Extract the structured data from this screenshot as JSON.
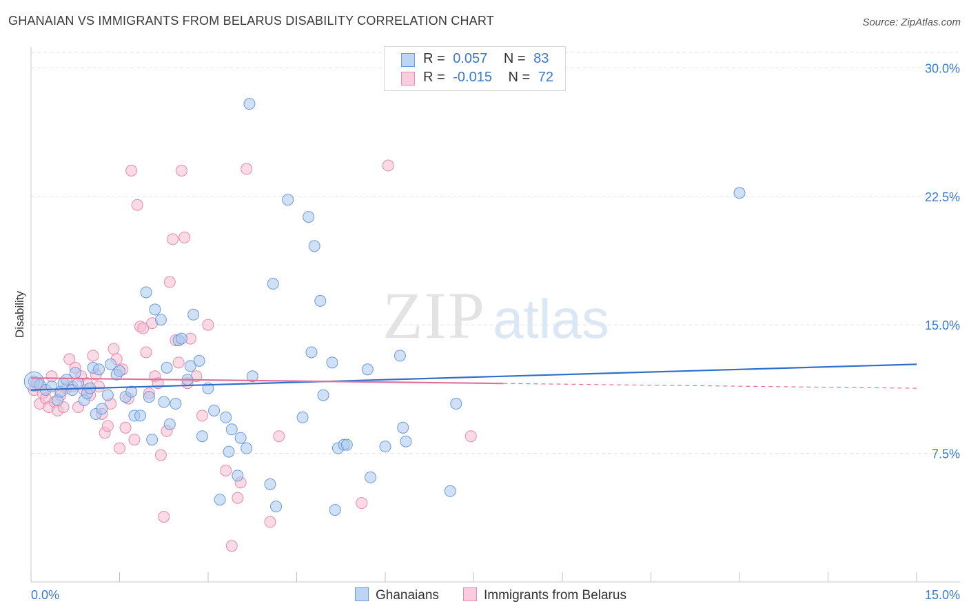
{
  "title": "GHANAIAN VS IMMIGRANTS FROM BELARUS DISABILITY CORRELATION CHART",
  "source": "Source: ZipAtlas.com",
  "watermark": {
    "zip": "ZIP",
    "atlas": "atlas"
  },
  "legend": {
    "rows": [
      {
        "r_label": "R =",
        "r_value": "0.057",
        "n_label": "N =",
        "n_value": "83"
      },
      {
        "r_label": "R =",
        "r_value": "-0.015",
        "n_label": "N =",
        "n_value": "72"
      }
    ]
  },
  "bottom_legend": {
    "series1": "Ghanaians",
    "series2": "Immigrants from Belarus"
  },
  "colors": {
    "blue_fill": "#aac8f0",
    "blue_stroke": "#6a9ad8",
    "blue_line": "#2f6fcc",
    "pink_fill": "#f6bcd0",
    "pink_stroke": "#e88aaa",
    "pink_line": "#e0709a",
    "axis_text": "#3a78c9"
  },
  "chart_data": {
    "type": "scatter",
    "title": "GHANAIAN VS IMMIGRANTS FROM BELARUS DISABILITY CORRELATION CHART",
    "xlabel": "",
    "ylabel": "Disability",
    "xlim": [
      0,
      15
    ],
    "ylim": [
      0,
      30.9
    ],
    "x_tick_labels": [
      "0.0%",
      "15.0%"
    ],
    "y_ticks": [
      7.5,
      15.0,
      22.5,
      30.0
    ],
    "y_tick_labels": [
      "7.5%",
      "15.0%",
      "22.5%",
      "30.0%"
    ],
    "grid": "horizontal dashed",
    "legend_position": "top-center",
    "series": [
      {
        "name": "Ghanaians",
        "R": 0.057,
        "N": 83,
        "trend": {
          "x": [
            0,
            15
          ],
          "y": [
            11.2,
            12.7
          ]
        },
        "points": [
          [
            0.05,
            11.7
          ],
          [
            0.15,
            11.5
          ],
          [
            0.25,
            11.2
          ],
          [
            0.35,
            11.4
          ],
          [
            0.45,
            10.6
          ],
          [
            0.5,
            11.1
          ],
          [
            0.55,
            11.6
          ],
          [
            0.6,
            11.8
          ],
          [
            0.7,
            11.2
          ],
          [
            0.75,
            12.2
          ],
          [
            0.8,
            11.6
          ],
          [
            0.9,
            10.6
          ],
          [
            0.95,
            11.0
          ],
          [
            1.0,
            11.3
          ],
          [
            1.05,
            12.5
          ],
          [
            1.1,
            9.8
          ],
          [
            1.15,
            12.4
          ],
          [
            1.2,
            10.1
          ],
          [
            1.3,
            10.9
          ],
          [
            1.35,
            12.7
          ],
          [
            1.45,
            12.1
          ],
          [
            1.5,
            12.3
          ],
          [
            1.6,
            10.8
          ],
          [
            1.7,
            11.1
          ],
          [
            1.75,
            9.7
          ],
          [
            1.85,
            9.7
          ],
          [
            1.95,
            16.9
          ],
          [
            2.0,
            10.8
          ],
          [
            2.05,
            8.3
          ],
          [
            2.1,
            15.9
          ],
          [
            2.2,
            15.3
          ],
          [
            2.25,
            10.5
          ],
          [
            2.3,
            12.5
          ],
          [
            2.35,
            9.2
          ],
          [
            2.45,
            10.4
          ],
          [
            2.5,
            14.1
          ],
          [
            2.55,
            14.2
          ],
          [
            2.65,
            11.8
          ],
          [
            2.7,
            12.6
          ],
          [
            2.75,
            15.6
          ],
          [
            2.85,
            12.9
          ],
          [
            2.9,
            8.5
          ],
          [
            3.0,
            11.3
          ],
          [
            3.1,
            10.0
          ],
          [
            3.2,
            4.8
          ],
          [
            3.3,
            9.6
          ],
          [
            3.35,
            7.6
          ],
          [
            3.4,
            8.9
          ],
          [
            3.5,
            6.2
          ],
          [
            3.55,
            8.4
          ],
          [
            3.65,
            7.8
          ],
          [
            3.7,
            27.9
          ],
          [
            3.75,
            12.0
          ],
          [
            4.05,
            5.7
          ],
          [
            4.1,
            17.4
          ],
          [
            4.15,
            4.4
          ],
          [
            4.35,
            22.3
          ],
          [
            4.6,
            9.6
          ],
          [
            4.7,
            21.3
          ],
          [
            4.75,
            13.4
          ],
          [
            4.8,
            19.6
          ],
          [
            4.9,
            16.4
          ],
          [
            4.95,
            10.9
          ],
          [
            5.1,
            12.8
          ],
          [
            5.15,
            4.2
          ],
          [
            5.2,
            7.8
          ],
          [
            5.3,
            8.0
          ],
          [
            5.35,
            8.0
          ],
          [
            5.7,
            12.4
          ],
          [
            5.75,
            6.1
          ],
          [
            6.0,
            7.9
          ],
          [
            6.25,
            13.2
          ],
          [
            6.3,
            9.0
          ],
          [
            6.35,
            8.2
          ],
          [
            7.1,
            5.3
          ],
          [
            7.2,
            10.4
          ],
          [
            12.0,
            22.7
          ]
        ]
      },
      {
        "name": "Immigrants from Belarus",
        "R": -0.015,
        "N": 72,
        "trend": {
          "x": [
            0,
            15
          ],
          "y": [
            11.9,
            11.3
          ]
        },
        "trend_solid_until_x": 8.0,
        "points": [
          [
            0.05,
            11.2
          ],
          [
            0.1,
            11.6
          ],
          [
            0.15,
            10.4
          ],
          [
            0.2,
            11.0
          ],
          [
            0.25,
            10.7
          ],
          [
            0.3,
            10.2
          ],
          [
            0.35,
            12.0
          ],
          [
            0.4,
            10.5
          ],
          [
            0.45,
            10.0
          ],
          [
            0.5,
            10.9
          ],
          [
            0.55,
            10.2
          ],
          [
            0.6,
            11.3
          ],
          [
            0.65,
            13.0
          ],
          [
            0.7,
            11.4
          ],
          [
            0.75,
            12.5
          ],
          [
            0.8,
            10.2
          ],
          [
            0.85,
            12.0
          ],
          [
            0.9,
            11.2
          ],
          [
            0.95,
            11.6
          ],
          [
            1.0,
            10.9
          ],
          [
            1.05,
            13.2
          ],
          [
            1.1,
            12.1
          ],
          [
            1.15,
            11.4
          ],
          [
            1.2,
            9.8
          ],
          [
            1.25,
            8.7
          ],
          [
            1.3,
            9.1
          ],
          [
            1.35,
            10.4
          ],
          [
            1.4,
            13.6
          ],
          [
            1.45,
            13.0
          ],
          [
            1.5,
            7.8
          ],
          [
            1.55,
            12.4
          ],
          [
            1.6,
            9.0
          ],
          [
            1.65,
            10.7
          ],
          [
            1.7,
            24.0
          ],
          [
            1.75,
            8.3
          ],
          [
            1.8,
            22.0
          ],
          [
            1.85,
            14.9
          ],
          [
            1.9,
            14.8
          ],
          [
            1.95,
            13.4
          ],
          [
            2.0,
            11.0
          ],
          [
            2.05,
            15.1
          ],
          [
            2.1,
            12.0
          ],
          [
            2.15,
            11.6
          ],
          [
            2.2,
            7.4
          ],
          [
            2.25,
            3.8
          ],
          [
            2.3,
            8.8
          ],
          [
            2.35,
            17.5
          ],
          [
            2.4,
            20.0
          ],
          [
            2.45,
            14.1
          ],
          [
            2.5,
            12.8
          ],
          [
            2.55,
            24.0
          ],
          [
            2.6,
            20.1
          ],
          [
            2.65,
            11.6
          ],
          [
            2.7,
            14.2
          ],
          [
            2.8,
            12.0
          ],
          [
            2.9,
            9.7
          ],
          [
            3.0,
            15.0
          ],
          [
            3.3,
            6.5
          ],
          [
            3.4,
            2.1
          ],
          [
            3.5,
            4.9
          ],
          [
            3.55,
            5.8
          ],
          [
            3.65,
            24.1
          ],
          [
            4.05,
            3.5
          ],
          [
            4.2,
            8.5
          ],
          [
            5.6,
            4.6
          ],
          [
            6.05,
            24.3
          ],
          [
            7.45,
            8.5
          ]
        ]
      }
    ]
  }
}
